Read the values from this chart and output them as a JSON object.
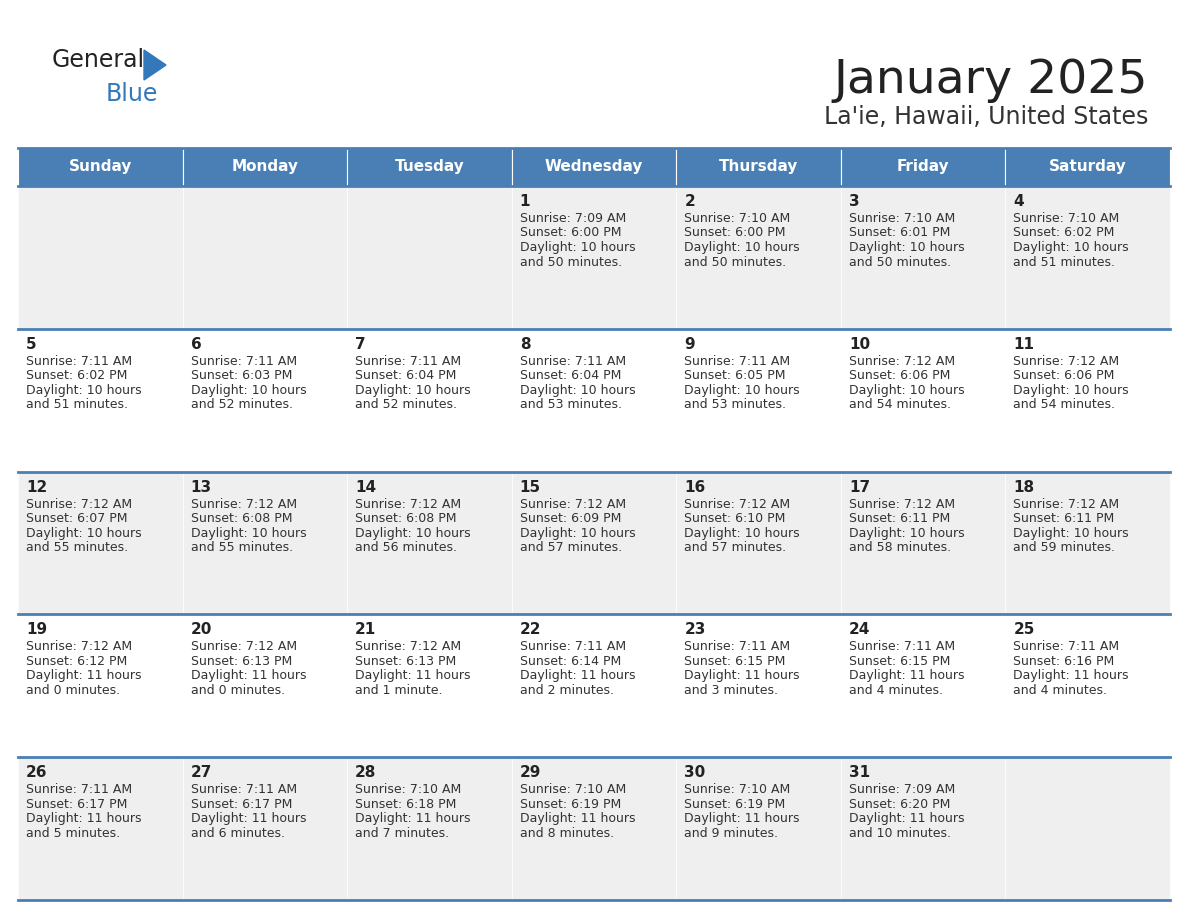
{
  "title": "January 2025",
  "subtitle": "La'ie, Hawaii, United States",
  "days_of_week": [
    "Sunday",
    "Monday",
    "Tuesday",
    "Wednesday",
    "Thursday",
    "Friday",
    "Saturday"
  ],
  "header_bg": "#4a7fb5",
  "header_text": "#ffffff",
  "cell_bg_alt": "#efefef",
  "cell_bg_white": "#ffffff",
  "border_color": "#4a7fb5",
  "title_color": "#222222",
  "subtitle_color": "#333333",
  "day_num_color": "#222222",
  "cell_text_color": "#333333",
  "logo_general_color": "#222222",
  "logo_blue_color": "#3378bb",
  "logo_triangle_color": "#3378bb",
  "calendar_data": [
    [
      null,
      null,
      null,
      {
        "day": "1",
        "sunrise": "7:09 AM",
        "sunset": "6:00 PM",
        "dl_line1": "Daylight: 10 hours",
        "dl_line2": "and 50 minutes."
      },
      {
        "day": "2",
        "sunrise": "7:10 AM",
        "sunset": "6:00 PM",
        "dl_line1": "Daylight: 10 hours",
        "dl_line2": "and 50 minutes."
      },
      {
        "day": "3",
        "sunrise": "7:10 AM",
        "sunset": "6:01 PM",
        "dl_line1": "Daylight: 10 hours",
        "dl_line2": "and 50 minutes."
      },
      {
        "day": "4",
        "sunrise": "7:10 AM",
        "sunset": "6:02 PM",
        "dl_line1": "Daylight: 10 hours",
        "dl_line2": "and 51 minutes."
      }
    ],
    [
      {
        "day": "5",
        "sunrise": "7:11 AM",
        "sunset": "6:02 PM",
        "dl_line1": "Daylight: 10 hours",
        "dl_line2": "and 51 minutes."
      },
      {
        "day": "6",
        "sunrise": "7:11 AM",
        "sunset": "6:03 PM",
        "dl_line1": "Daylight: 10 hours",
        "dl_line2": "and 52 minutes."
      },
      {
        "day": "7",
        "sunrise": "7:11 AM",
        "sunset": "6:04 PM",
        "dl_line1": "Daylight: 10 hours",
        "dl_line2": "and 52 minutes."
      },
      {
        "day": "8",
        "sunrise": "7:11 AM",
        "sunset": "6:04 PM",
        "dl_line1": "Daylight: 10 hours",
        "dl_line2": "and 53 minutes."
      },
      {
        "day": "9",
        "sunrise": "7:11 AM",
        "sunset": "6:05 PM",
        "dl_line1": "Daylight: 10 hours",
        "dl_line2": "and 53 minutes."
      },
      {
        "day": "10",
        "sunrise": "7:12 AM",
        "sunset": "6:06 PM",
        "dl_line1": "Daylight: 10 hours",
        "dl_line2": "and 54 minutes."
      },
      {
        "day": "11",
        "sunrise": "7:12 AM",
        "sunset": "6:06 PM",
        "dl_line1": "Daylight: 10 hours",
        "dl_line2": "and 54 minutes."
      }
    ],
    [
      {
        "day": "12",
        "sunrise": "7:12 AM",
        "sunset": "6:07 PM",
        "dl_line1": "Daylight: 10 hours",
        "dl_line2": "and 55 minutes."
      },
      {
        "day": "13",
        "sunrise": "7:12 AM",
        "sunset": "6:08 PM",
        "dl_line1": "Daylight: 10 hours",
        "dl_line2": "and 55 minutes."
      },
      {
        "day": "14",
        "sunrise": "7:12 AM",
        "sunset": "6:08 PM",
        "dl_line1": "Daylight: 10 hours",
        "dl_line2": "and 56 minutes."
      },
      {
        "day": "15",
        "sunrise": "7:12 AM",
        "sunset": "6:09 PM",
        "dl_line1": "Daylight: 10 hours",
        "dl_line2": "and 57 minutes."
      },
      {
        "day": "16",
        "sunrise": "7:12 AM",
        "sunset": "6:10 PM",
        "dl_line1": "Daylight: 10 hours",
        "dl_line2": "and 57 minutes."
      },
      {
        "day": "17",
        "sunrise": "7:12 AM",
        "sunset": "6:11 PM",
        "dl_line1": "Daylight: 10 hours",
        "dl_line2": "and 58 minutes."
      },
      {
        "day": "18",
        "sunrise": "7:12 AM",
        "sunset": "6:11 PM",
        "dl_line1": "Daylight: 10 hours",
        "dl_line2": "and 59 minutes."
      }
    ],
    [
      {
        "day": "19",
        "sunrise": "7:12 AM",
        "sunset": "6:12 PM",
        "dl_line1": "Daylight: 11 hours",
        "dl_line2": "and 0 minutes."
      },
      {
        "day": "20",
        "sunrise": "7:12 AM",
        "sunset": "6:13 PM",
        "dl_line1": "Daylight: 11 hours",
        "dl_line2": "and 0 minutes."
      },
      {
        "day": "21",
        "sunrise": "7:12 AM",
        "sunset": "6:13 PM",
        "dl_line1": "Daylight: 11 hours",
        "dl_line2": "and 1 minute."
      },
      {
        "day": "22",
        "sunrise": "7:11 AM",
        "sunset": "6:14 PM",
        "dl_line1": "Daylight: 11 hours",
        "dl_line2": "and 2 minutes."
      },
      {
        "day": "23",
        "sunrise": "7:11 AM",
        "sunset": "6:15 PM",
        "dl_line1": "Daylight: 11 hours",
        "dl_line2": "and 3 minutes."
      },
      {
        "day": "24",
        "sunrise": "7:11 AM",
        "sunset": "6:15 PM",
        "dl_line1": "Daylight: 11 hours",
        "dl_line2": "and 4 minutes."
      },
      {
        "day": "25",
        "sunrise": "7:11 AM",
        "sunset": "6:16 PM",
        "dl_line1": "Daylight: 11 hours",
        "dl_line2": "and 4 minutes."
      }
    ],
    [
      {
        "day": "26",
        "sunrise": "7:11 AM",
        "sunset": "6:17 PM",
        "dl_line1": "Daylight: 11 hours",
        "dl_line2": "and 5 minutes."
      },
      {
        "day": "27",
        "sunrise": "7:11 AM",
        "sunset": "6:17 PM",
        "dl_line1": "Daylight: 11 hours",
        "dl_line2": "and 6 minutes."
      },
      {
        "day": "28",
        "sunrise": "7:10 AM",
        "sunset": "6:18 PM",
        "dl_line1": "Daylight: 11 hours",
        "dl_line2": "and 7 minutes."
      },
      {
        "day": "29",
        "sunrise": "7:10 AM",
        "sunset": "6:19 PM",
        "dl_line1": "Daylight: 11 hours",
        "dl_line2": "and 8 minutes."
      },
      {
        "day": "30",
        "sunrise": "7:10 AM",
        "sunset": "6:19 PM",
        "dl_line1": "Daylight: 11 hours",
        "dl_line2": "and 9 minutes."
      },
      {
        "day": "31",
        "sunrise": "7:09 AM",
        "sunset": "6:20 PM",
        "dl_line1": "Daylight: 11 hours",
        "dl_line2": "and 10 minutes."
      },
      null
    ]
  ]
}
